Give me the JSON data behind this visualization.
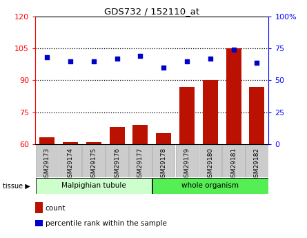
{
  "title": "GDS732 / 152110_at",
  "samples": [
    "GSM29173",
    "GSM29174",
    "GSM29175",
    "GSM29176",
    "GSM29177",
    "GSM29178",
    "GSM29179",
    "GSM29180",
    "GSM29181",
    "GSM29182"
  ],
  "count_values": [
    63,
    61,
    61,
    68,
    69,
    65,
    87,
    90,
    105,
    87
  ],
  "percentile_values": [
    68,
    65,
    65,
    67,
    69,
    60,
    65,
    67,
    74,
    64
  ],
  "left_ylim": [
    60,
    120
  ],
  "left_yticks": [
    60,
    75,
    90,
    105,
    120
  ],
  "right_ylim": [
    0,
    100
  ],
  "right_yticks": [
    0,
    25,
    50,
    75,
    100
  ],
  "right_yticklabels": [
    "0",
    "25",
    "50",
    "75",
    "100%"
  ],
  "tissue_groups": [
    {
      "label": "Malpighian tubule",
      "start": 0,
      "end": 4,
      "color": "#ccffcc"
    },
    {
      "label": "whole organism",
      "start": 5,
      "end": 9,
      "color": "#55ee55"
    }
  ],
  "bar_color": "#bb1100",
  "dot_color": "#0000cc",
  "plot_bg": "#ffffff",
  "legend_count_label": "count",
  "legend_pct_label": "percentile rank within the sample",
  "grid_yticks": [
    75,
    90,
    105
  ]
}
